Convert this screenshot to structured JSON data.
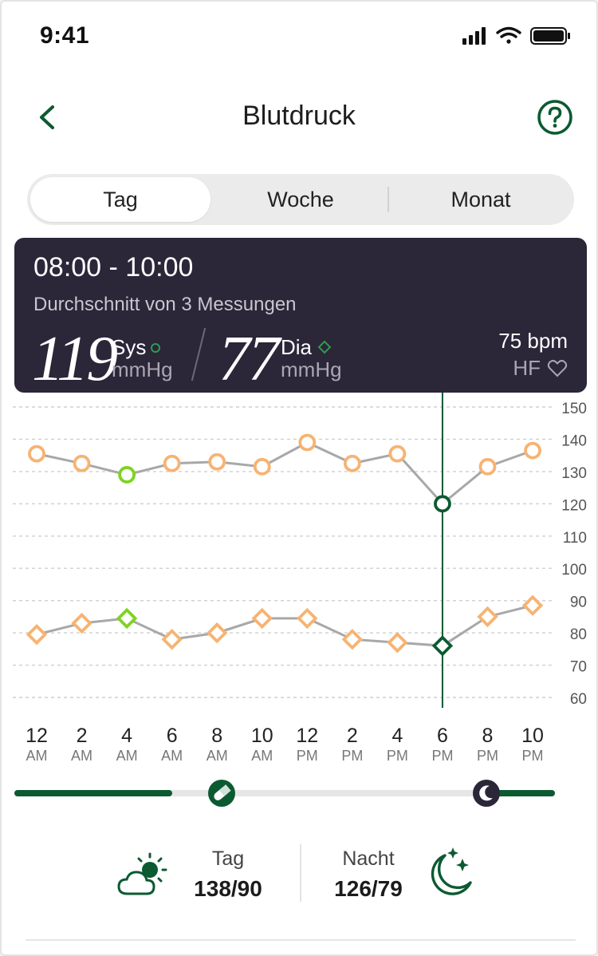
{
  "status_bar": {
    "time": "9:41"
  },
  "header": {
    "title": "Blutdruck"
  },
  "tabs": [
    {
      "label": "Tag",
      "active": true
    },
    {
      "label": "Woche",
      "active": false
    },
    {
      "label": "Monat",
      "active": false
    }
  ],
  "tooltip": {
    "range": "08:00 - 10:00",
    "subtitle": "Durchschnitt von 3 Messungen",
    "sys_value": "119",
    "sys_label": "Sys",
    "sys_unit": "mmHg",
    "dia_value": "77",
    "dia_label": "Dia",
    "dia_unit": "mmHg",
    "hr_value": "75 bpm",
    "hr_label": "HF"
  },
  "colors": {
    "accent": "#0c5a32",
    "highlight_green": "#7ed321",
    "marker_orange": "#f7b372",
    "line_gray": "#a8a8a8",
    "card_bg": "#2b2638"
  },
  "chart_data": {
    "type": "line",
    "x": [
      "12 AM",
      "2 AM",
      "4 AM",
      "6 AM",
      "8 AM",
      "10 AM",
      "12 PM",
      "2 PM",
      "4 PM",
      "6 PM",
      "8 PM",
      "10 PM"
    ],
    "series": [
      {
        "values": [
          135.5,
          132.5,
          129,
          132.5,
          133,
          131.5,
          139,
          132.5,
          135.5,
          120,
          131.5,
          136.5
        ],
        "marker": "circle"
      },
      {
        "values": [
          79.5,
          83,
          84.5,
          78,
          80,
          84.5,
          84.5,
          78,
          77,
          76,
          85,
          88.5
        ],
        "marker": "diamond"
      }
    ],
    "selected_index": 9,
    "good_range_indices": [
      2
    ],
    "y_ticks": [
      150,
      140,
      130,
      120,
      110,
      100,
      90,
      80,
      70,
      60
    ],
    "ylim": [
      60,
      150
    ],
    "grid": true,
    "y_axis_side": "right"
  },
  "x_axis_labels": [
    {
      "hour": "12",
      "ampm": "AM"
    },
    {
      "hour": "2",
      "ampm": "AM"
    },
    {
      "hour": "4",
      "ampm": "AM"
    },
    {
      "hour": "6",
      "ampm": "AM"
    },
    {
      "hour": "8",
      "ampm": "AM"
    },
    {
      "hour": "10",
      "ampm": "AM"
    },
    {
      "hour": "12",
      "ampm": "PM"
    },
    {
      "hour": "2",
      "ampm": "PM"
    },
    {
      "hour": "4",
      "ampm": "PM"
    },
    {
      "hour": "6",
      "ampm": "PM"
    },
    {
      "hour": "8",
      "ampm": "PM"
    },
    {
      "hour": "10",
      "ampm": "PM"
    }
  ],
  "timeline": {
    "medication_icon": "pill-icon",
    "night_icon": "moon-icon"
  },
  "summary": {
    "day": {
      "label": "Tag",
      "value": "138/90",
      "icon": "cloud-sun-icon"
    },
    "night": {
      "label": "Nacht",
      "value": "126/79",
      "icon": "moon-stars-icon"
    }
  }
}
